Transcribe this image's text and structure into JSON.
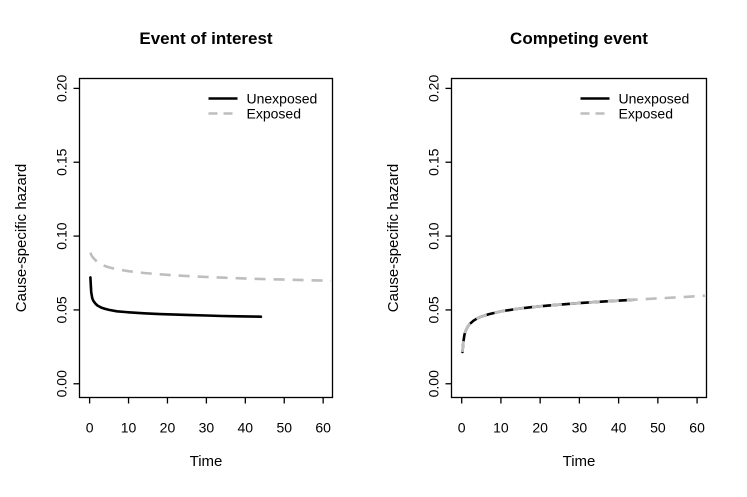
{
  "figure": {
    "background": "#ffffff",
    "colors": {
      "unexposed": "#000000",
      "exposed": "#bebebe"
    }
  },
  "chart_data": [
    {
      "type": "line",
      "title": "Event of interest",
      "xlabel": "Time",
      "ylabel": "Cause-specific hazard",
      "xlim": [
        -2.6,
        62.4
      ],
      "ylim": [
        -0.0093,
        0.2067
      ],
      "grid": false,
      "xticks": {
        "values": [
          0,
          10,
          20,
          30,
          40,
          50,
          60
        ],
        "labels": [
          "0",
          "10",
          "20",
          "30",
          "40",
          "50",
          "60"
        ]
      },
      "yticks": {
        "values": [
          0,
          0.05,
          0.1,
          0.15,
          0.2
        ],
        "labels": [
          "0.00",
          "0.05",
          "0.10",
          "0.15",
          "0.20"
        ]
      },
      "legend": {
        "position": "topright",
        "entries": [
          {
            "label": "Unexposed",
            "color": "#000000",
            "linestyle": "solid"
          },
          {
            "label": "Exposed",
            "color": "#bebebe",
            "linestyle": "dashed"
          }
        ]
      },
      "series": [
        {
          "name": "Unexposed",
          "color": "#000000",
          "linestyle": "solid",
          "x": [
            0.2,
            0.4,
            0.7,
            1,
            1.5,
            2,
            3,
            4,
            5,
            7,
            10,
            14,
            18,
            22,
            26,
            30,
            34,
            38,
            42,
            44
          ],
          "y": [
            0.072,
            0.062,
            0.0578,
            0.056,
            0.0542,
            0.053,
            0.0516,
            0.0507,
            0.05,
            0.0491,
            0.0484,
            0.0477,
            0.0472,
            0.0468,
            0.0465,
            0.0462,
            0.0459,
            0.0457,
            0.0455,
            0.0454
          ]
        },
        {
          "name": "Exposed",
          "color": "#bebebe",
          "linestyle": "dashed",
          "x": [
            0.2,
            0.5,
            1,
            2,
            3,
            4,
            5,
            7,
            10,
            14,
            18,
            22,
            26,
            30,
            34,
            38,
            42,
            46,
            50,
            55,
            62
          ],
          "y": [
            0.0888,
            0.0868,
            0.085,
            0.0824,
            0.0808,
            0.0797,
            0.0788,
            0.0775,
            0.0762,
            0.075,
            0.0741,
            0.0734,
            0.0728,
            0.0723,
            0.0719,
            0.0715,
            0.0711,
            0.0708,
            0.0705,
            0.0702,
            0.0698
          ]
        }
      ]
    },
    {
      "type": "line",
      "title": "Competing event",
      "xlabel": "Time",
      "ylabel": "Cause-specific hazard",
      "xlim": [
        -2.6,
        62.4
      ],
      "ylim": [
        -0.0093,
        0.2067
      ],
      "grid": false,
      "xticks": {
        "values": [
          0,
          10,
          20,
          30,
          40,
          50,
          60
        ],
        "labels": [
          "0",
          "10",
          "20",
          "30",
          "40",
          "50",
          "60"
        ]
      },
      "yticks": {
        "values": [
          0,
          0.05,
          0.1,
          0.15,
          0.2
        ],
        "labels": [
          "0.00",
          "0.05",
          "0.10",
          "0.15",
          "0.20"
        ]
      },
      "legend": {
        "position": "topright",
        "entries": [
          {
            "label": "Unexposed",
            "color": "#000000",
            "linestyle": "solid"
          },
          {
            "label": "Exposed",
            "color": "#bebebe",
            "linestyle": "dashed"
          }
        ]
      },
      "series": [
        {
          "name": "Unexposed",
          "color": "#000000",
          "linestyle": "solid",
          "x": [
            0.2,
            0.4,
            0.7,
            1,
            1.5,
            2,
            3,
            4,
            5,
            7,
            10,
            14,
            18,
            22,
            26,
            30,
            34,
            38,
            42,
            44
          ],
          "y": [
            0.0215,
            0.028,
            0.033,
            0.0358,
            0.0385,
            0.0403,
            0.0427,
            0.0443,
            0.0455,
            0.0472,
            0.049,
            0.0507,
            0.0519,
            0.0529,
            0.0538,
            0.0546,
            0.0553,
            0.056,
            0.0566,
            0.0569
          ]
        },
        {
          "name": "Exposed",
          "color": "#bebebe",
          "linestyle": "dashed",
          "x": [
            0.2,
            0.4,
            0.7,
            1,
            1.5,
            2,
            3,
            4,
            5,
            7,
            10,
            14,
            18,
            22,
            26,
            30,
            34,
            38,
            42,
            44,
            48,
            52,
            57,
            62
          ],
          "y": [
            0.0215,
            0.028,
            0.033,
            0.0358,
            0.0385,
            0.0403,
            0.0427,
            0.0443,
            0.0455,
            0.0472,
            0.049,
            0.0507,
            0.0519,
            0.0529,
            0.0538,
            0.0546,
            0.0553,
            0.056,
            0.0566,
            0.0569,
            0.0575,
            0.0581,
            0.0588,
            0.0596
          ]
        }
      ]
    }
  ]
}
